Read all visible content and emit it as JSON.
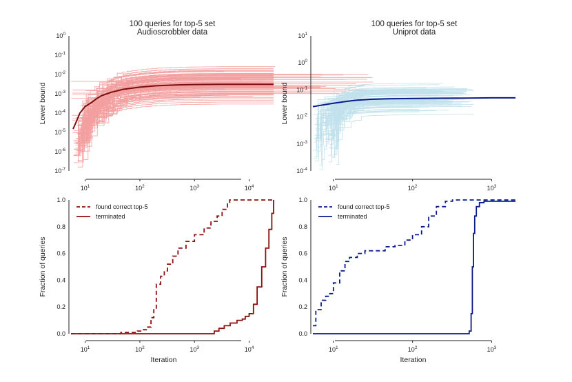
{
  "chart_data": [
    {
      "panel": "top-left",
      "type": "line",
      "title": [
        "100 queries for top-5 set",
        "Audioscrobbler data"
      ],
      "xlabel": "",
      "ylabel": "Lower bound",
      "xscale": "log",
      "yscale": "log",
      "xlim": [
        5.5,
        28000
      ],
      "ylim": [
        1e-07,
        1
      ],
      "xticks": [
        10,
        100,
        1000,
        10000
      ],
      "yticks": [
        1e-07,
        1e-06,
        1e-05,
        0.0001,
        0.001,
        0.01,
        0.1,
        1
      ],
      "grid": false,
      "n_runs": 100,
      "color_runs": "#f08080",
      "color_mean": "#7a0e0e",
      "mean_series": {
        "x": [
          6,
          7,
          8,
          10,
          13,
          16,
          20,
          30,
          50,
          100,
          200,
          500,
          1000,
          3000,
          10000,
          28000
        ],
        "y": [
          1.5e-05,
          4e-05,
          0.0001,
          0.00022,
          0.00035,
          0.00055,
          0.0008,
          0.0012,
          0.0017,
          0.0022,
          0.0026,
          0.0029,
          0.003,
          0.0031,
          0.0031,
          0.0031
        ]
      }
    },
    {
      "panel": "top-right",
      "type": "line",
      "title": [
        "100 queries for top-5 set",
        "Uniprot data"
      ],
      "xlabel": "",
      "ylabel": "Lower bound",
      "xscale": "log",
      "yscale": "log",
      "xlim": [
        5.5,
        2000
      ],
      "ylim": [
        0.0001,
        10
      ],
      "xticks": [
        10,
        100,
        1000
      ],
      "yticks": [
        0.0001,
        0.001,
        0.01,
        0.1,
        1,
        10
      ],
      "grid": false,
      "n_runs": 100,
      "color_runs": "#add8e6",
      "color_mean": "#0a1a8a",
      "mean_series": {
        "x": [
          5.5,
          8,
          10,
          15,
          20,
          30,
          50,
          100,
          200,
          500,
          1000,
          2000
        ],
        "y": [
          0.024,
          0.029,
          0.032,
          0.038,
          0.042,
          0.045,
          0.047,
          0.048,
          0.049,
          0.05,
          0.051,
          0.051
        ]
      }
    },
    {
      "panel": "bottom-left",
      "type": "line",
      "xlabel": "Iteration",
      "ylabel": "Fraction of queries",
      "xscale": "log",
      "xlim": [
        5.5,
        28000
      ],
      "ylim": [
        0,
        1
      ],
      "xticks": [
        10,
        100,
        1000,
        10000
      ],
      "yticks": [
        0.0,
        0.2,
        0.4,
        0.6,
        0.8,
        1.0
      ],
      "legend": "top-left",
      "grid": false,
      "series": [
        {
          "name": "found correct top-5",
          "style": "dashed",
          "color": "#8b0f0f",
          "x": [
            5.5,
            30,
            45,
            70,
            90,
            110,
            140,
            160,
            180,
            200,
            240,
            280,
            320,
            400,
            500,
            700,
            1000,
            1500,
            2000,
            2600,
            3200,
            4000,
            4400,
            5000,
            28000
          ],
          "y": [
            0,
            0,
            0.01,
            0.01,
            0.02,
            0.03,
            0.05,
            0.12,
            0.18,
            0.37,
            0.43,
            0.47,
            0.52,
            0.58,
            0.64,
            0.69,
            0.74,
            0.79,
            0.84,
            0.88,
            0.93,
            0.97,
            1.0,
            1.0,
            1.0
          ]
        },
        {
          "name": "terminated",
          "style": "solid",
          "color": "#8b0f0f",
          "x": [
            5.5,
            2000,
            2300,
            2800,
            3500,
            4500,
            6000,
            7500,
            8500,
            10000,
            12000,
            14000,
            17000,
            20000,
            23000,
            26000,
            28000
          ],
          "y": [
            0,
            0,
            0.02,
            0.04,
            0.06,
            0.08,
            0.1,
            0.11,
            0.13,
            0.15,
            0.22,
            0.35,
            0.5,
            0.64,
            0.78,
            0.9,
            1.0
          ]
        }
      ]
    },
    {
      "panel": "bottom-right",
      "type": "line",
      "xlabel": "Iteration",
      "ylabel": "Fraction of queries",
      "xscale": "log",
      "xlim": [
        5.5,
        2000
      ],
      "ylim": [
        0,
        1
      ],
      "xticks": [
        10,
        100,
        1000
      ],
      "yticks": [
        0.0,
        0.2,
        0.4,
        0.6,
        0.8,
        1.0
      ],
      "legend": "top-left",
      "grid": false,
      "series": [
        {
          "name": "found correct top-5",
          "style": "dashed",
          "color": "#0a1a8a",
          "x": [
            5.5,
            6,
            7,
            8,
            9,
            10,
            12,
            14,
            16,
            20,
            25,
            35,
            45,
            60,
            80,
            100,
            130,
            160,
            200,
            260,
            320,
            2000
          ],
          "y": [
            0.06,
            0.18,
            0.25,
            0.28,
            0.3,
            0.38,
            0.47,
            0.54,
            0.57,
            0.6,
            0.62,
            0.62,
            0.65,
            0.66,
            0.7,
            0.74,
            0.8,
            0.88,
            0.95,
            0.99,
            1.0,
            1.0
          ]
        },
        {
          "name": "terminated",
          "style": "solid",
          "color": "#0a1a8a",
          "x": [
            5.5,
            450,
            520,
            550,
            570,
            590,
            610,
            640,
            700,
            800,
            1000,
            2000
          ],
          "y": [
            0,
            0,
            0.02,
            0.15,
            0.5,
            0.75,
            0.88,
            0.95,
            0.98,
            0.99,
            0.99,
            0.99
          ]
        }
      ]
    }
  ]
}
